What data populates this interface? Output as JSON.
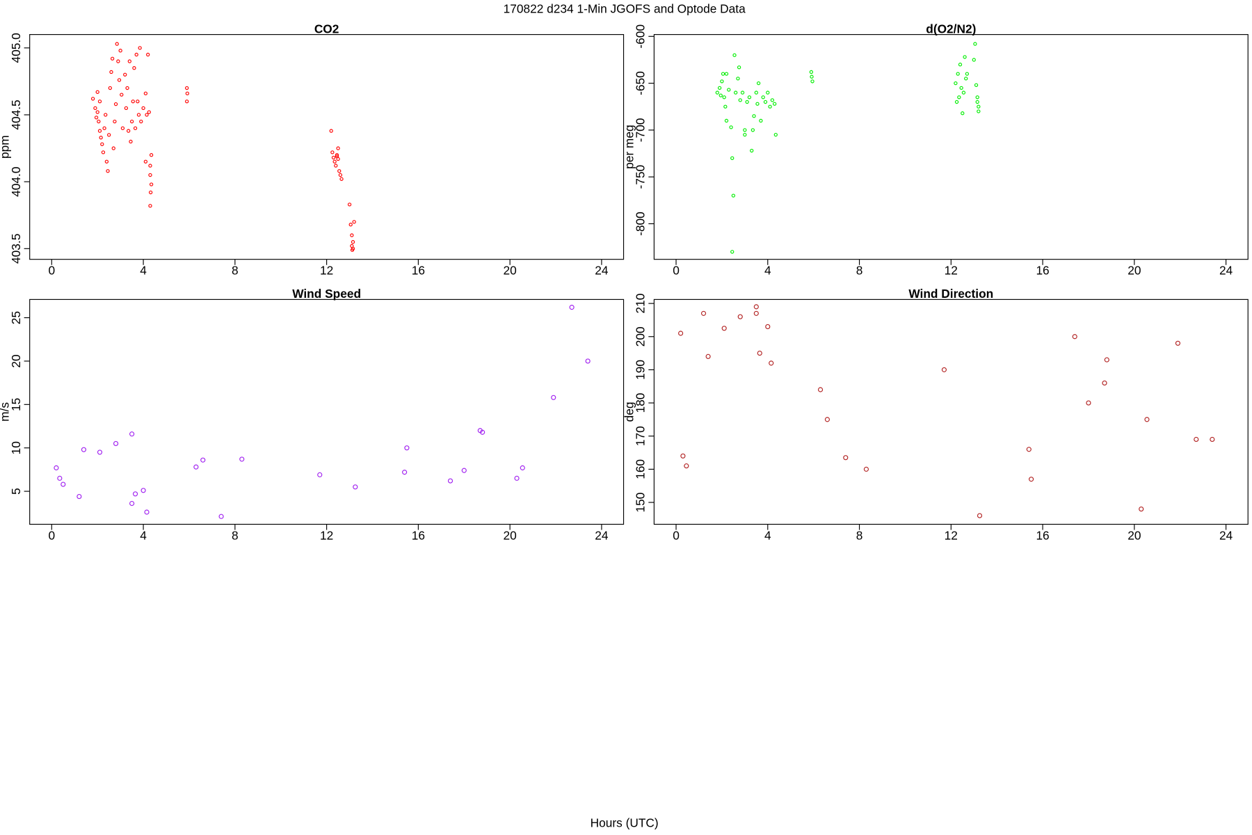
{
  "title": "170822   d234   1-Min  JGOFS and Optode Data",
  "xlabel": "Hours (UTC)",
  "chart_data": [
    {
      "type": "scatter",
      "title": "CO2",
      "ylabel": "ppm",
      "color": "#ff0000",
      "xlim": [
        -0.96,
        24.96
      ],
      "ylim": [
        403.42,
        405.1
      ],
      "xticks": [
        0,
        4,
        8,
        12,
        16,
        20,
        24
      ],
      "yticks": [
        403.5,
        {
          "value": 404,
          "label": "404.0"
        },
        404.5,
        {
          "value": 405,
          "label": "405.0"
        }
      ],
      "x": [
        1.8,
        1.9,
        1.95,
        2.0,
        2.05,
        2.1,
        2.15,
        2.2,
        2.25,
        2.0,
        2.1,
        2.3,
        2.35,
        2.4,
        2.45,
        2.5,
        2.55,
        2.6,
        2.65,
        2.7,
        2.75,
        2.8,
        2.85,
        2.9,
        2.95,
        3.0,
        3.05,
        3.1,
        3.2,
        3.25,
        3.3,
        3.35,
        3.4,
        3.45,
        3.5,
        3.55,
        3.6,
        3.65,
        3.7,
        3.75,
        3.8,
        3.85,
        3.9,
        4.0,
        4.1,
        4.15,
        4.2,
        4.25,
        4.1,
        4.3,
        4.35,
        4.3,
        4.35,
        4.32,
        4.3,
        5.9,
        5.9,
        5.92,
        12.2,
        12.25,
        12.3,
        12.35,
        12.4,
        12.45,
        12.5,
        12.55,
        12.6,
        12.65,
        12.45,
        12.5,
        13.0,
        13.05,
        13.1,
        13.15,
        13.1,
        13.12,
        13.2,
        13.15
      ],
      "values": [
        404.62,
        404.55,
        404.48,
        404.52,
        404.45,
        404.38,
        404.33,
        404.28,
        404.22,
        404.67,
        404.6,
        404.4,
        404.5,
        404.15,
        404.08,
        404.35,
        404.7,
        404.82,
        404.92,
        404.25,
        404.45,
        404.58,
        405.03,
        404.9,
        404.76,
        404.98,
        404.65,
        404.4,
        404.8,
        404.55,
        404.7,
        404.38,
        404.9,
        404.3,
        404.45,
        404.6,
        404.85,
        404.4,
        404.95,
        404.6,
        404.5,
        405.0,
        404.45,
        404.55,
        404.66,
        404.5,
        404.95,
        404.52,
        404.15,
        404.12,
        404.2,
        404.05,
        403.98,
        403.92,
        403.82,
        404.7,
        404.6,
        404.66,
        404.38,
        404.22,
        404.18,
        404.15,
        404.12,
        404.2,
        404.25,
        404.08,
        404.05,
        404.02,
        404.19,
        404.17,
        403.83,
        403.68,
        403.6,
        403.55,
        403.52,
        403.49,
        403.7,
        403.5
      ]
    },
    {
      "type": "scatter",
      "title": "d(O2/N2)",
      "ylabel": "per meg",
      "color": "#00ee00",
      "xlim": [
        -0.96,
        24.96
      ],
      "ylim": [
        -838,
        -598
      ],
      "xticks": [
        0,
        4,
        8,
        12,
        16,
        20,
        24
      ],
      "yticks": [
        -800,
        -750,
        -700,
        -650,
        -600
      ],
      "x": [
        1.8,
        1.9,
        2.0,
        2.05,
        2.1,
        2.15,
        2.2,
        2.3,
        2.4,
        2.45,
        2.5,
        2.45,
        2.55,
        2.6,
        2.7,
        2.75,
        2.8,
        2.9,
        3.0,
        3.1,
        3.2,
        3.3,
        3.35,
        3.4,
        3.5,
        3.55,
        3.6,
        3.7,
        3.8,
        3.9,
        4.0,
        4.1,
        4.2,
        4.3,
        4.35,
        1.95,
        2.2,
        3.0,
        5.9,
        5.92,
        5.95,
        12.2,
        12.25,
        12.3,
        12.35,
        12.4,
        12.45,
        12.5,
        12.55,
        12.6,
        12.65,
        12.7,
        13.0,
        13.05,
        13.1,
        13.15,
        13.15,
        13.2,
        13.2
      ],
      "values": [
        -660,
        -655,
        -648,
        -640,
        -665,
        -675,
        -690,
        -657,
        -697,
        -730,
        -770,
        -830,
        -620,
        -660,
        -645,
        -633,
        -668,
        -660,
        -705,
        -670,
        -665,
        -722,
        -700,
        -685,
        -660,
        -672,
        -650,
        -690,
        -665,
        -670,
        -660,
        -675,
        -668,
        -672,
        -705,
        -663,
        -640,
        -700,
        -638,
        -643,
        -648,
        -650,
        -670,
        -640,
        -665,
        -630,
        -655,
        -682,
        -660,
        -622,
        -645,
        -640,
        -625,
        -608,
        -652,
        -665,
        -670,
        -675,
        -680
      ]
    },
    {
      "type": "scatter",
      "title": "Wind Speed",
      "ylabel": "m/s",
      "color": "#a020f0",
      "xlim": [
        -0.96,
        24.96
      ],
      "ylim": [
        1.2,
        27.1
      ],
      "xticks": [
        0,
        4,
        8,
        12,
        16,
        20,
        24
      ],
      "yticks": [
        5,
        10,
        15,
        20,
        25
      ],
      "x": [
        0.2,
        0.35,
        0.5,
        1.2,
        1.4,
        2.1,
        2.8,
        3.5,
        3.5,
        3.65,
        4.0,
        4.15,
        6.3,
        6.6,
        7.4,
        8.3,
        11.7,
        13.25,
        15.4,
        15.5,
        17.4,
        18.0,
        18.7,
        18.8,
        20.3,
        20.55,
        21.9,
        22.7,
        23.4
      ],
      "values": [
        7.7,
        6.5,
        5.8,
        4.4,
        9.8,
        9.5,
        10.5,
        11.6,
        3.6,
        4.7,
        5.1,
        2.6,
        7.8,
        8.6,
        2.1,
        8.7,
        6.9,
        5.5,
        7.2,
        10.0,
        6.2,
        7.4,
        12.0,
        11.8,
        6.5,
        7.7,
        15.8,
        26.2,
        20.0
      ]
    },
    {
      "type": "scatter",
      "title": "Wind Direction",
      "ylabel": "deg",
      "color": "#b22222",
      "xlim": [
        -0.96,
        24.96
      ],
      "ylim": [
        143.4,
        211.2
      ],
      "xticks": [
        0,
        4,
        8,
        12,
        16,
        20,
        24
      ],
      "yticks": [
        150,
        160,
        170,
        180,
        190,
        200,
        210
      ],
      "x": [
        0.2,
        0.3,
        0.45,
        1.2,
        1.4,
        2.1,
        2.8,
        3.5,
        3.5,
        3.65,
        4.0,
        4.15,
        6.3,
        6.6,
        7.4,
        8.3,
        11.7,
        13.25,
        15.4,
        15.5,
        17.4,
        18.0,
        18.7,
        18.8,
        20.3,
        20.55,
        21.9,
        22.7,
        23.4
      ],
      "values": [
        201,
        164,
        161,
        207,
        194,
        202.5,
        206,
        209,
        207,
        195,
        203,
        192,
        184,
        175,
        163.5,
        160,
        190,
        146,
        166,
        157,
        200,
        180,
        186,
        193,
        148,
        175,
        198,
        169,
        169
      ]
    }
  ]
}
